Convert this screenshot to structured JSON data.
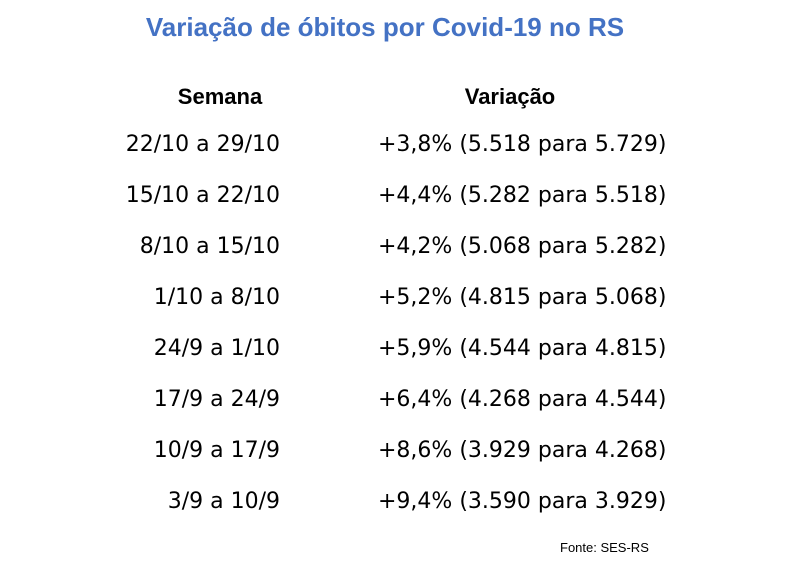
{
  "title": "Variação de óbitos por Covid-19 no RS",
  "headers": {
    "semana": "Semana",
    "variacao": "Variação"
  },
  "rows": [
    {
      "semana": "22/10 a 29/10",
      "variacao": "+3,8% (5.518 para 5.729)"
    },
    {
      "semana": "15/10 a 22/10",
      "variacao": "+4,4% (5.282 para 5.518)"
    },
    {
      "semana": "8/10 a 15/10",
      "variacao": "+4,2% (5.068 para 5.282)"
    },
    {
      "semana": "1/10 a 8/10",
      "variacao": "+5,2% (4.815 para 5.068)"
    },
    {
      "semana": "24/9 a 1/10",
      "variacao": "+5,9% (4.544 para 4.815)"
    },
    {
      "semana": "17/9 a 24/9",
      "variacao": "+6,4% (4.268 para 4.544)"
    },
    {
      "semana": "10/9 a 17/9",
      "variacao": "+8,6% (3.929 para 4.268)"
    },
    {
      "semana": "3/9 a 10/9",
      "variacao": "+9,4% (3.590 para 3.929)"
    }
  ],
  "source": "Fonte: SES-RS",
  "colors": {
    "title": "#4472c4",
    "text": "#000000",
    "background": "#ffffff"
  }
}
